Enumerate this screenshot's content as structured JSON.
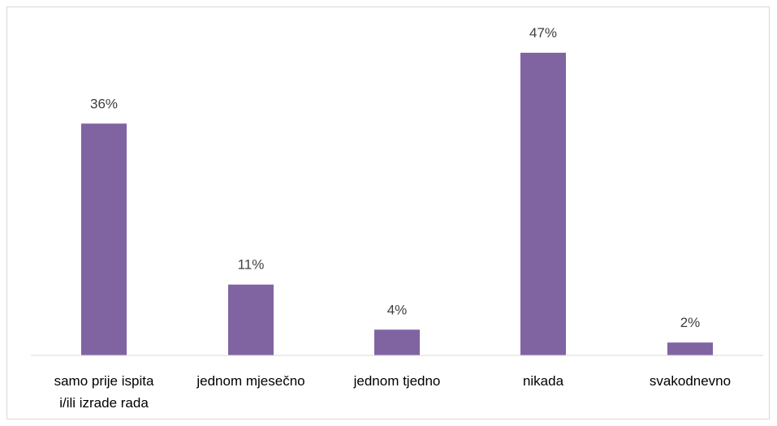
{
  "chart_data": {
    "type": "bar",
    "categories": [
      [
        "samo prije ispita",
        "i/ili izrade rada"
      ],
      [
        "jednom mjesečno"
      ],
      [
        "jednom tjedno"
      ],
      [
        "nikada"
      ],
      [
        "svakodnevno"
      ]
    ],
    "values": [
      36,
      11,
      4,
      47,
      2
    ],
    "data_labels": [
      "36%",
      "11%",
      "4%",
      "47%",
      "2%"
    ],
    "unit": "%",
    "title": "",
    "xlabel": "",
    "ylabel": "",
    "ylim": [
      0,
      50
    ],
    "grid": false,
    "legend": "none",
    "bar_color": "#8064a2",
    "axis_color": "#d9d9d9",
    "label_color": "#404040"
  }
}
